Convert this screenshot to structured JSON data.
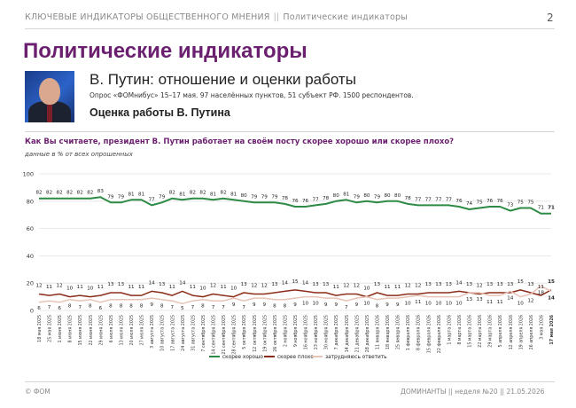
{
  "header": {
    "section": "КЛЮЧЕВЫЕ ИНДИКАТОРЫ ОБЩЕСТВЕННОГО МНЕНИЯ",
    "separator": "||",
    "topic": "Политические индикаторы",
    "page_number": "2"
  },
  "page_title": "Политические индикаторы",
  "subtitle": "В. Путин: отношение и оценки работы",
  "survey_note": "Опрос «ФОМнибус» 15–17 мая. 97 населённых пунктов, 51 субъект РФ. 1500 респондентов.",
  "section_title": "Оценка работы В. Путина",
  "question": "Как Вы считаете, президент В. Путин работает на своём посту скорее хорошо или скорее плохо?",
  "units_note": "данные в % от всех опрошенных",
  "footer": {
    "left": "© ФОМ",
    "right": "ДОМИНАНТЫ || неделя №20 || 21.05.2026"
  },
  "colors": {
    "good": "#2e8b45",
    "bad": "#8b2d1a",
    "hard": "#e7c3b6",
    "title": "#6b1f6f"
  },
  "photo_icon": "portrait-photo",
  "chart_data": {
    "type": "line",
    "ylim": [
      0,
      100
    ],
    "yticks": [
      0,
      20,
      40,
      60,
      80,
      100
    ],
    "grid": true,
    "legend_placement": "bottom",
    "categories": [
      "18 мая 2025",
      "25 мая 2025",
      "1 июня 2025",
      "8 июня 2025",
      "15 июня 2025",
      "22 июня 2025",
      "29 июня 2025",
      "6 июля 2025",
      "13 июля 2025",
      "20 июля 2025",
      "27 июля 2025",
      "3 августа 2025",
      "10 августа 2025",
      "17 августа 2025",
      "24 августа 2025",
      "31 августа 2025",
      "7 сентября 2025",
      "14 сентября 2025",
      "21 сентября 2025",
      "28 сентября 2025",
      "5 октября 2025",
      "12 октября 2025",
      "19 октября 2025",
      "26 октября 2025",
      "2 ноября 2025",
      "9 ноября 2025",
      "16 ноября 2025",
      "23 ноября 2025",
      "30 ноября 2025",
      "7 декабря 2025",
      "14 декабря 2025",
      "21 декабря 2025",
      "28 декабря 2025",
      "11 января 2026",
      "18 января 2026",
      "25 января 2026",
      "1 февраля 2026",
      "8 февраля 2026",
      "15 февраля 2026",
      "22 февраля 2026",
      "1 марта 2026",
      "8 марта 2026",
      "15 марта 2026",
      "22 марта 2026",
      "29 марта 2026",
      "5 апреля 2026",
      "12 апреля 2026",
      "19 апреля 2026",
      "26 апреля 2026",
      "3 мая 2026",
      "17 мая 2026"
    ],
    "series": [
      {
        "name": "скорее хорошо",
        "color": "#2e8b45",
        "width": 2,
        "labels": true,
        "values": [
          82,
          82,
          82,
          82,
          82,
          82,
          83,
          79,
          79,
          81,
          81,
          77,
          79,
          82,
          81,
          82,
          82,
          81,
          82,
          81,
          80,
          79,
          79,
          79,
          78,
          76,
          76,
          77,
          78,
          80,
          81,
          79,
          80,
          79,
          80,
          80,
          78,
          77,
          77,
          77,
          77,
          76,
          74,
          75,
          76,
          76,
          73,
          75,
          75,
          71,
          71
        ]
      },
      {
        "name": "скорее плохо",
        "color": "#8b2d1a",
        "width": 1.5,
        "labels": true,
        "values": [
          12,
          11,
          12,
          10,
          11,
          10,
          11,
          13,
          13,
          11,
          11,
          14,
          13,
          11,
          14,
          11,
          10,
          12,
          11,
          10,
          13,
          12,
          12,
          13,
          14,
          15,
          14,
          13,
          13,
          11,
          12,
          12,
          10,
          13,
          11,
          11,
          12,
          12,
          13,
          13,
          13,
          14,
          13,
          12,
          13,
          13,
          13,
          15,
          13,
          11,
          15
        ]
      },
      {
        "name": "затрудняюсь ответить",
        "color": "#e7c3b6",
        "width": 1.5,
        "labels": false,
        "values": [
          6,
          7,
          6,
          8,
          7,
          8,
          6,
          8,
          8,
          8,
          8,
          9,
          8,
          7,
          5,
          7,
          8,
          7,
          7,
          9,
          7,
          9,
          9,
          8,
          8,
          9,
          10,
          10,
          9,
          9,
          7,
          9,
          10,
          8,
          9,
          9,
          10,
          11,
          10,
          10,
          10,
          10,
          13,
          13,
          11,
          11,
          14,
          10,
          12,
          18,
          14
        ]
      },
      {
        "name": "",
        "color": "#8b2d1a",
        "width": 0,
        "labels": true,
        "label_only": true,
        "values": [
          6,
          7,
          6,
          8,
          7,
          8,
          6,
          8,
          8,
          8,
          8,
          9,
          8,
          7,
          5,
          7,
          8,
          7,
          7,
          9,
          7,
          9,
          9,
          8,
          8,
          9,
          10,
          10,
          9,
          9,
          7,
          9,
          10,
          8,
          9,
          9,
          10,
          11,
          10,
          10,
          10,
          10,
          13,
          13,
          11,
          11,
          14,
          10,
          12,
          18,
          14
        ]
      }
    ]
  }
}
